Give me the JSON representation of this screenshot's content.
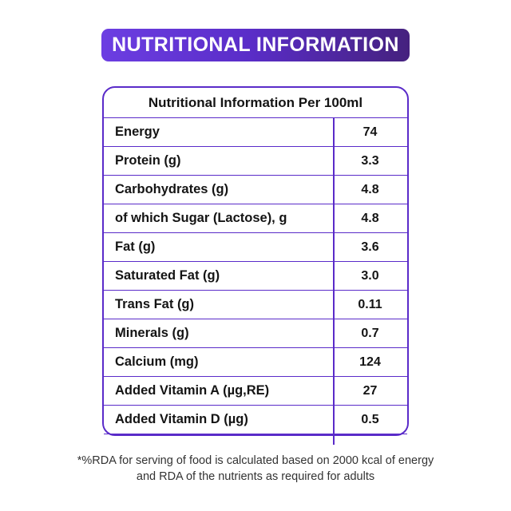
{
  "banner": {
    "title": "NUTRITIONAL INFORMATION"
  },
  "table": {
    "title": "Nutritional Information Per 100ml",
    "rows": [
      {
        "label": "Energy",
        "value": "74"
      },
      {
        "label": "Protein (g)",
        "value": "3.3"
      },
      {
        "label": "Carbohydrates (g)",
        "value": "4.8"
      },
      {
        "label": "of which Sugar (Lactose), g",
        "value": "4.8"
      },
      {
        "label": "Fat (g)",
        "value": "3.6"
      },
      {
        "label": "Saturated Fat (g)",
        "value": "3.0"
      },
      {
        "label": "Trans Fat (g)",
        "value": "0.11"
      },
      {
        "label": "Minerals (g)",
        "value": "0.7"
      },
      {
        "label": "Calcium (mg)",
        "value": "124"
      },
      {
        "label": "Added Vitamin A (µg,RE)",
        "value": "27"
      },
      {
        "label": "Added Vitamin D (µg)",
        "value": "0.5"
      }
    ]
  },
  "footnote": {
    "line1": "*%RDA for serving of food is calculated based on 2000 kcal of energy",
    "line2": "and RDA of the nutrients as required for adults"
  },
  "colors": {
    "banner_gradient_left": "#6C3EE2",
    "banner_gradient_mid": "#5A2DC8",
    "banner_gradient_right": "#45217E",
    "table_border": "#5A2BC9",
    "table_text": "#141414",
    "footnote_text": "#333333",
    "banner_text": "#ffffff",
    "background": "#ffffff"
  }
}
